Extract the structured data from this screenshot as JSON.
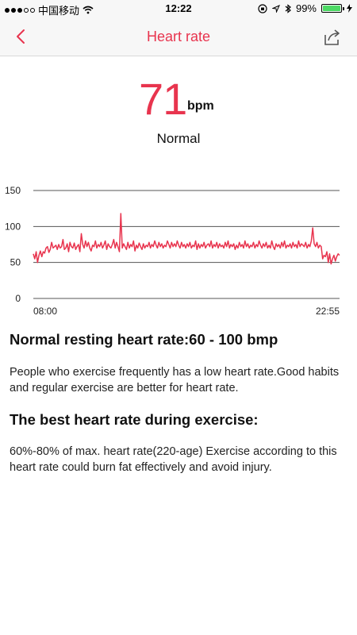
{
  "status_bar": {
    "carrier": "中国移动",
    "time": "12:22",
    "battery": "99%",
    "battery_level": 0.99
  },
  "nav": {
    "title": "Heart rate",
    "back_icon": "chevron-left-icon",
    "share_icon": "share-icon"
  },
  "heart_rate": {
    "value": "71",
    "unit": "bpm",
    "status": "Normal"
  },
  "colors": {
    "accent": "#e8344e",
    "line": "#e8344e"
  },
  "chart_data": {
    "type": "line",
    "title": "",
    "xlabel": "",
    "ylabel": "",
    "ylim": [
      0,
      150
    ],
    "yticks": [
      0,
      50,
      100,
      150
    ],
    "x_start_label": "08:00",
    "x_end_label": "22:55",
    "grid": true,
    "series": [
      {
        "values": [
          62,
          55,
          65,
          50,
          60,
          66,
          58,
          65,
          63,
          70,
          72,
          64,
          68,
          78,
          70,
          72,
          74,
          68,
          75,
          70,
          72,
          82,
          68,
          70,
          76,
          65,
          78,
          72,
          70,
          77,
          68,
          72,
          75,
          65,
          90,
          75,
          70,
          80,
          72,
          78,
          70,
          66,
          74,
          72,
          80,
          70,
          75,
          72,
          78,
          70,
          74,
          80,
          68,
          76,
          72,
          70,
          75,
          82,
          70,
          78,
          72,
          65,
          118,
          70,
          76,
          72,
          68,
          78,
          70,
          75,
          72,
          80,
          66,
          74,
          70,
          77,
          72,
          68,
          76,
          70,
          74,
          72,
          78,
          70,
          75,
          72,
          80,
          74,
          70,
          78,
          72,
          76,
          70,
          74,
          72,
          80,
          75,
          70,
          78,
          72,
          76,
          72,
          80,
          74,
          70,
          78,
          72,
          75,
          70,
          76,
          72,
          78,
          70,
          74,
          72,
          80,
          68,
          76,
          70,
          75,
          72,
          78,
          70,
          74,
          76,
          72,
          80,
          70,
          75,
          72,
          78,
          70,
          76,
          72,
          74,
          70,
          78,
          72,
          80,
          70,
          75,
          72,
          76,
          68,
          74,
          70,
          78,
          72,
          75,
          70,
          80,
          72,
          76,
          70,
          74,
          72,
          78,
          70,
          75,
          72,
          80,
          74,
          70,
          76,
          72,
          78,
          70,
          74,
          70,
          80,
          72,
          68,
          76,
          72,
          75,
          70,
          78,
          72,
          80,
          70,
          74,
          72,
          76,
          70,
          78,
          72,
          75,
          70,
          80,
          72,
          76,
          74,
          72,
          78,
          70,
          75,
          72,
          80,
          98,
          76,
          72,
          78,
          70,
          74,
          72,
          55,
          60,
          58,
          65,
          50,
          62,
          48,
          55,
          60,
          52,
          58,
          62,
          60
        ]
      }
    ]
  },
  "sections": [
    {
      "heading": "Normal resting heart rate:60 - 100 bmp",
      "body": "People who exercise frequently has a low heart rate.Good habits and regular exercise are better for heart rate."
    },
    {
      "heading": "The best heart rate during exercise:",
      "body": "60%-80% of max. heart rate(220-age) Exercise according to this heart rate could burn fat effectively and avoid injury."
    }
  ]
}
